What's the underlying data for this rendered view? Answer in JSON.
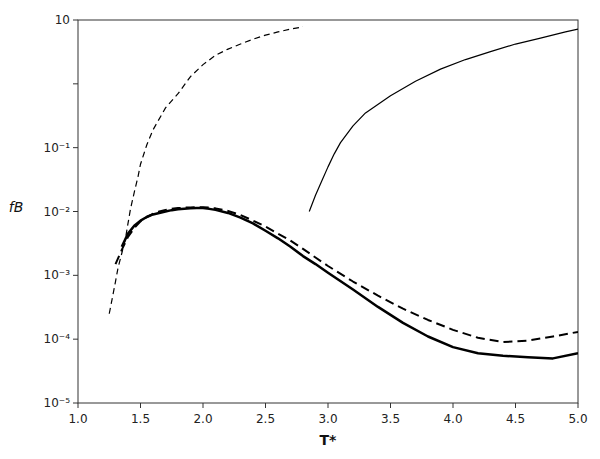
{
  "chart_data": {
    "type": "line",
    "log": "y",
    "x_label": "T*",
    "y_label": "fB",
    "xlim": [
      1.0,
      5.0
    ],
    "ylim": [
      1e-05,
      10
    ],
    "xticks": [
      {
        "value": 1.0,
        "label": "1.0"
      },
      1.5,
      {
        "value": 2.0,
        "label": "2.0"
      },
      2.5,
      {
        "value": 3.0,
        "label": "3.0"
      },
      3.5,
      {
        "value": 4.0,
        "label": "4.0"
      },
      4.5,
      {
        "value": 5.0,
        "label": "5.0"
      }
    ],
    "yticks": [
      {
        "value": 1e-05,
        "label": "10⁻⁵"
      },
      {
        "value": 0.0001,
        "label": "10⁻⁴"
      },
      {
        "value": 0.001,
        "label": "10⁻³"
      },
      {
        "value": 0.01,
        "label": "10⁻²"
      },
      {
        "value": 0.1,
        "label": "10⁻¹"
      },
      {
        "value": 1,
        "label": null
      },
      10
    ],
    "series": [
      {
        "color": "#000000",
        "line_style": "solid",
        "x": [
          1.35,
          1.4,
          1.45,
          1.5,
          1.55,
          1.6,
          1.65,
          1.7,
          1.75,
          1.8,
          1.85,
          1.9,
          1.95,
          2.0,
          2.05,
          2.1,
          2.2,
          2.3,
          2.4,
          2.5,
          2.6,
          2.7,
          2.8,
          2.9,
          3.0,
          3.2,
          3.4,
          3.6,
          3.8,
          4.0,
          4.2,
          4.4,
          4.6,
          4.8,
          5.0
        ],
        "values": [
          0.0028,
          0.0045,
          0.006,
          0.0072,
          0.0082,
          0.009,
          0.0095,
          0.01,
          0.0105,
          0.0108,
          0.011,
          0.0112,
          0.0113,
          0.0113,
          0.011,
          0.0106,
          0.0095,
          0.008,
          0.0065,
          0.005,
          0.0038,
          0.0028,
          0.002,
          0.0015,
          0.0011,
          0.0006,
          0.00032,
          0.00018,
          0.00011,
          7.5e-05,
          6e-05,
          5.5e-05,
          5.2e-05,
          5e-05,
          6e-05
        ]
      },
      {
        "color": "#000000",
        "line_style": "dashed",
        "x": [
          1.3,
          1.35,
          1.4,
          1.45,
          1.5,
          1.55,
          1.6,
          1.65,
          1.7,
          1.75,
          1.8,
          1.85,
          1.9,
          1.95,
          2.0,
          2.05,
          2.1,
          2.2,
          2.3,
          2.4,
          2.5,
          2.6,
          2.7,
          2.8,
          2.9,
          3.0,
          3.2,
          3.4,
          3.6,
          3.8,
          4.0,
          4.2,
          4.4,
          4.6,
          4.8,
          5.0
        ],
        "values": [
          0.0015,
          0.0025,
          0.004,
          0.0055,
          0.007,
          0.0082,
          0.0092,
          0.01,
          0.0106,
          0.011,
          0.0113,
          0.0115,
          0.0116,
          0.0117,
          0.0117,
          0.0115,
          0.0112,
          0.0102,
          0.0088,
          0.0072,
          0.0058,
          0.0045,
          0.0035,
          0.0026,
          0.0019,
          0.0014,
          0.0008,
          0.00048,
          0.0003,
          0.0002,
          0.00014,
          0.000105,
          9e-05,
          9.5e-05,
          0.00011,
          0.00013
        ]
      },
      {
        "color": "#000000",
        "line_style": "dashed",
        "x": [
          1.25,
          1.28,
          1.3,
          1.32,
          1.35,
          1.38,
          1.4,
          1.42,
          1.45,
          1.48,
          1.5,
          1.55,
          1.6,
          1.7,
          1.8,
          1.9,
          2.0,
          2.1,
          2.2,
          2.3,
          2.4,
          2.5,
          2.6,
          2.7,
          2.8
        ],
        "values": [
          0.00025,
          0.0005,
          0.0008,
          0.0013,
          0.0022,
          0.0038,
          0.0065,
          0.011,
          0.02,
          0.035,
          0.055,
          0.11,
          0.19,
          0.42,
          0.7,
          1.3,
          2.0,
          2.8,
          3.5,
          4.2,
          5.0,
          5.8,
          6.5,
          7.2,
          7.8
        ]
      },
      {
        "color": "#000000",
        "line_style": "solid",
        "x": [
          2.85,
          2.9,
          2.95,
          3.0,
          3.05,
          3.1,
          3.2,
          3.3,
          3.5,
          3.7,
          3.9,
          4.1,
          4.3,
          4.5,
          4.7,
          4.9,
          5.0
        ],
        "values": [
          0.01,
          0.018,
          0.03,
          0.05,
          0.08,
          0.12,
          0.22,
          0.35,
          0.65,
          1.1,
          1.7,
          2.4,
          3.2,
          4.2,
          5.2,
          6.5,
          7.2
        ]
      }
    ]
  }
}
